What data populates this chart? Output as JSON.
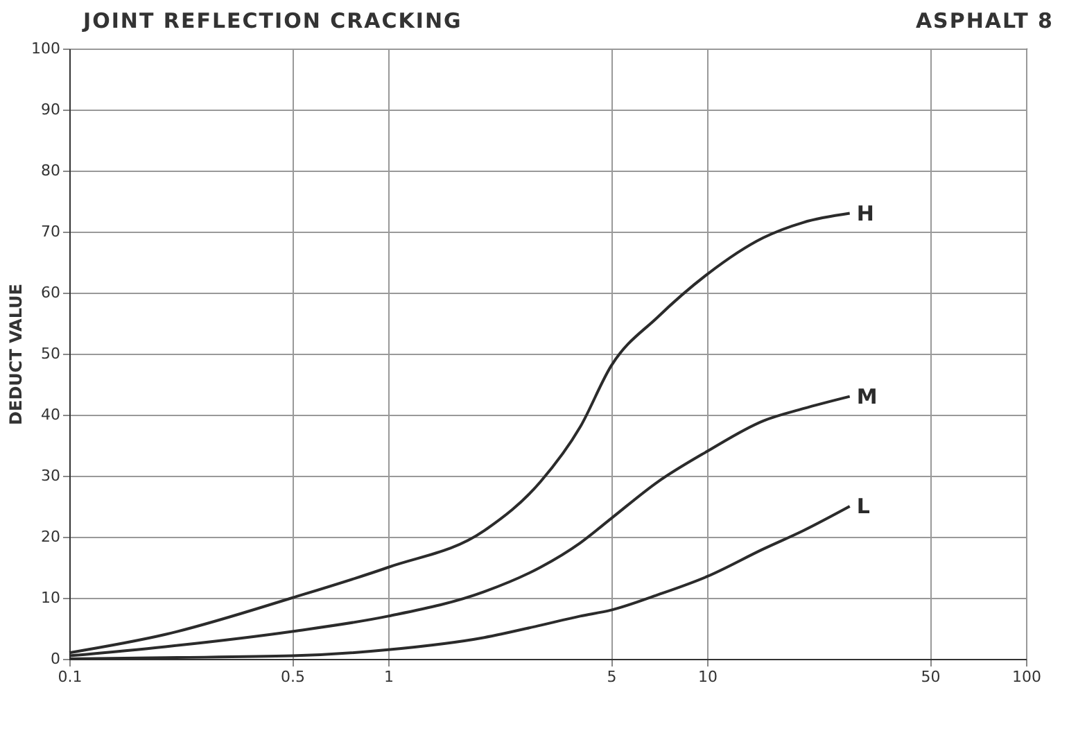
{
  "chart_data": {
    "type": "line",
    "title": "JOINT REFLECTION CRACKING",
    "subtitle": "ASPHALT 8",
    "ylabel": "DEDUCT VALUE",
    "log": "x",
    "grid": true,
    "marker": "none",
    "line_style": "solid",
    "xlim": [
      0.1,
      100
    ],
    "xticks": [
      0.1,
      0.5,
      1,
      5,
      10,
      50,
      100
    ],
    "ylim": [
      0,
      100
    ],
    "yticks": [
      0,
      10,
      20,
      30,
      40,
      50,
      60,
      70,
      80,
      90,
      100
    ],
    "x": [
      0.1,
      0.2,
      0.5,
      1,
      2,
      3,
      4,
      5,
      7,
      10,
      15,
      20,
      28
    ],
    "series": [
      {
        "name": "H",
        "color": "#2b2b2b",
        "values": [
          1,
          4,
          10,
          15,
          21,
          29,
          38,
          48,
          56,
          63,
          69,
          71.5,
          73
        ]
      },
      {
        "name": "M",
        "color": "#2b2b2b",
        "values": [
          0.5,
          2,
          4.5,
          7,
          11,
          15,
          19,
          23,
          29,
          34,
          39,
          41,
          43
        ]
      },
      {
        "name": "L",
        "color": "#2b2b2b",
        "values": [
          0,
          0.2,
          0.5,
          1.5,
          3.5,
          5.5,
          7,
          8,
          10.5,
          13.5,
          18,
          21,
          25
        ]
      }
    ]
  }
}
